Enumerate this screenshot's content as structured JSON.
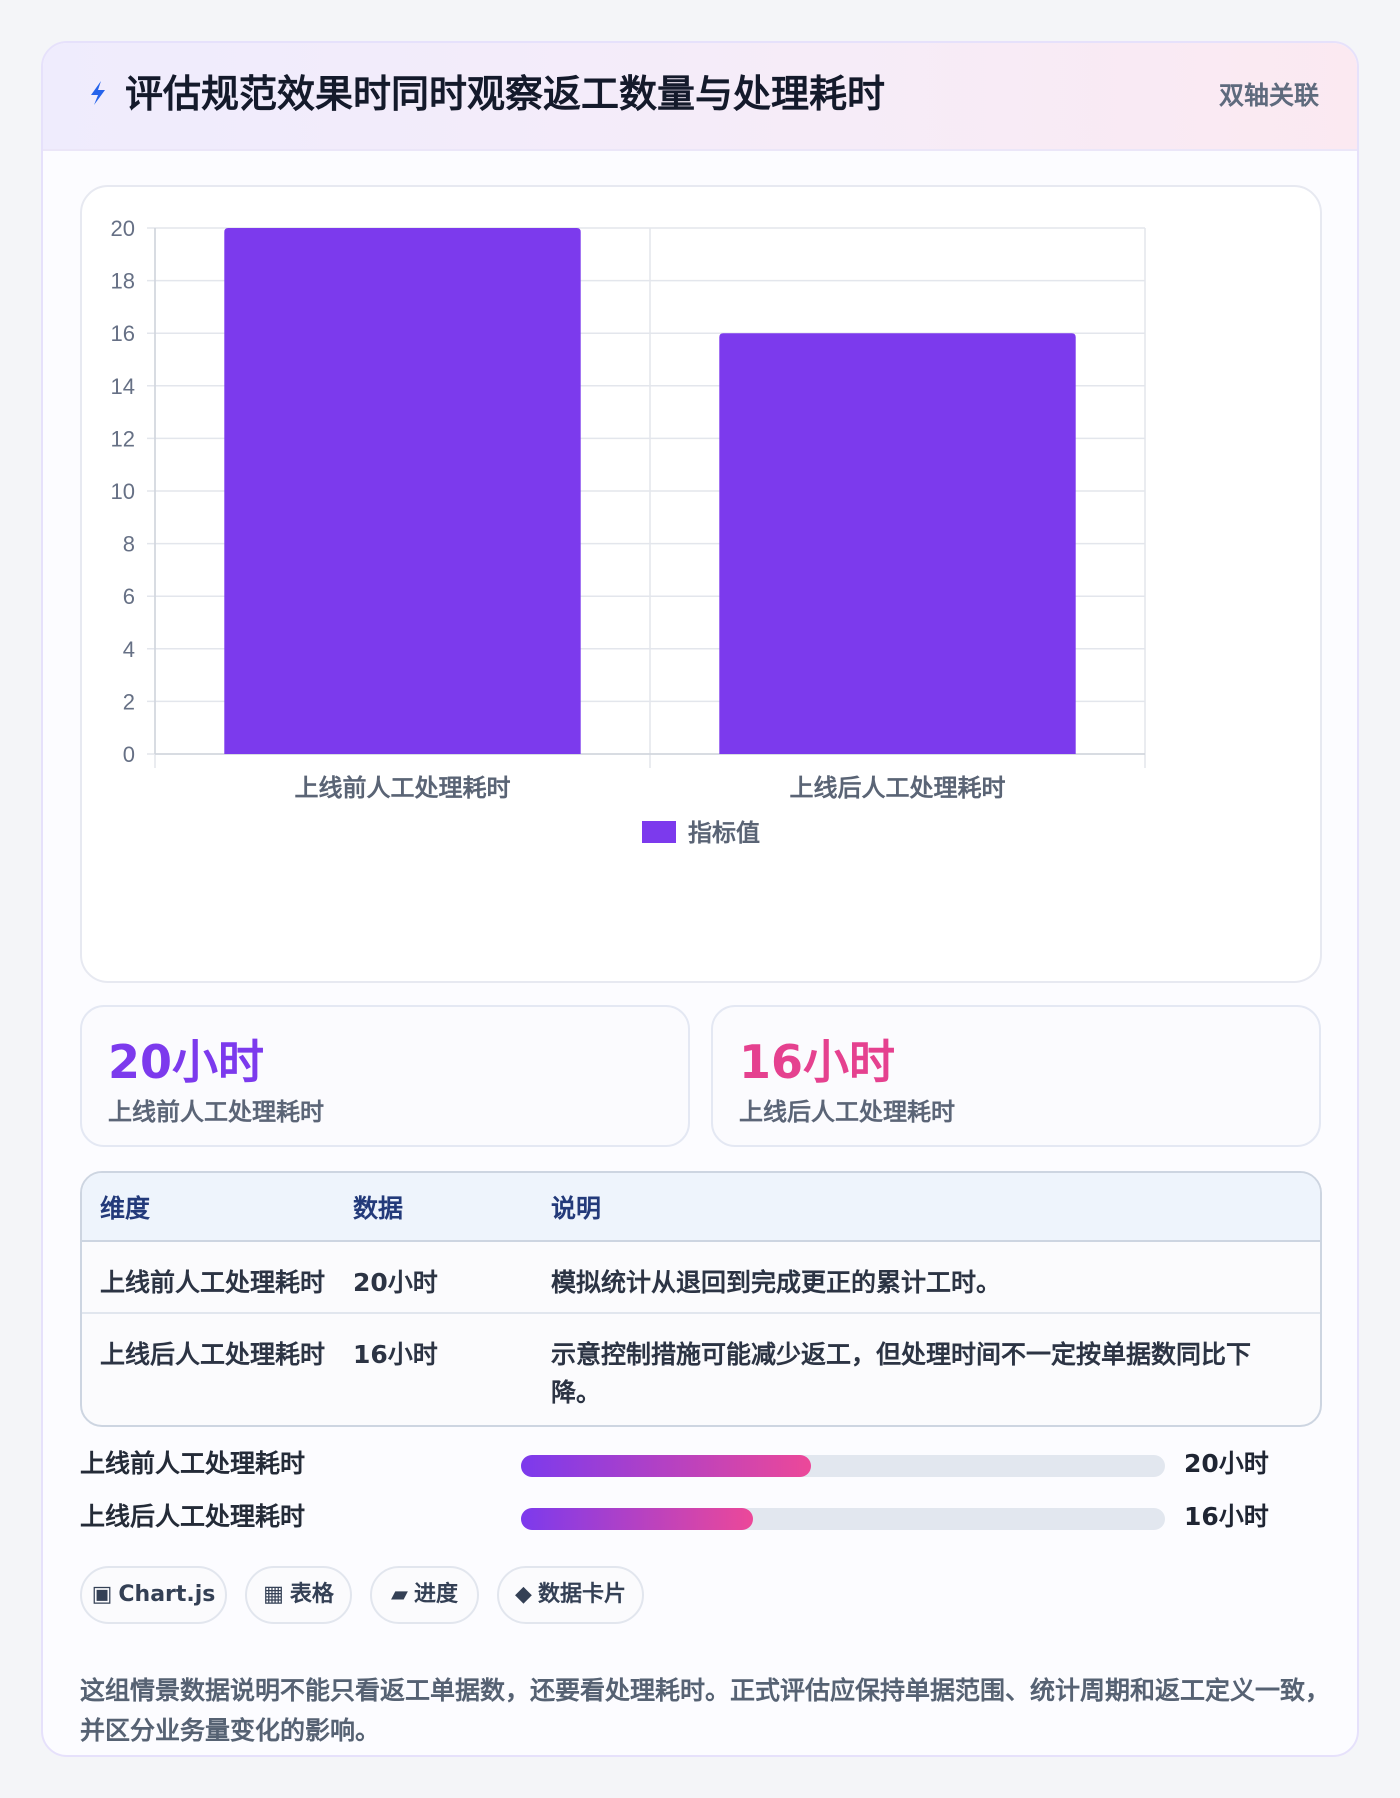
{
  "header": {
    "icon": "lightning-icon",
    "title": "评估规范效果时同时观察返工数量与处理耗时",
    "badge": "双轴关联"
  },
  "chart_data": {
    "type": "bar",
    "categories": [
      "上线前人工处理耗时",
      "上线后人工处理耗时"
    ],
    "series": [
      {
        "name": "指标值",
        "values": [
          20,
          16
        ],
        "color": "#7c3aed"
      }
    ],
    "yticks": [
      "0",
      "2",
      "4",
      "6",
      "8",
      "10",
      "12",
      "14",
      "16",
      "18",
      "20"
    ],
    "ylim": [
      0,
      20
    ],
    "grid": true,
    "legend": "bottom"
  },
  "stats": [
    {
      "value": "20小时",
      "label": "上线前人工处理耗时",
      "color": "#7c3aed"
    },
    {
      "value": "16小时",
      "label": "上线后人工处理耗时",
      "color": "#e5418f"
    }
  ],
  "table": {
    "headers": [
      "维度",
      "数据",
      "说明"
    ],
    "rows": [
      {
        "dimension": "上线前人工处理耗时",
        "data": "20小时",
        "note": "模拟统计从退回到完成更正的累计工时。"
      },
      {
        "dimension": "上线后人工处理耗时",
        "data": "16小时",
        "note": "示意控制措施可能减少返工，但处理时间不一定按单据数同比下降。"
      }
    ]
  },
  "progress": [
    {
      "label": "上线前人工处理耗时",
      "value": "20小时",
      "fraction": 0.45
    },
    {
      "label": "上线后人工处理耗时",
      "value": "16小时",
      "fraction": 0.36
    }
  ],
  "chips": [
    {
      "icon": "chart-icon",
      "glyph": "▣",
      "label": "Chart.js"
    },
    {
      "icon": "table-icon",
      "glyph": "▦",
      "label": "表格"
    },
    {
      "icon": "progress-icon",
      "glyph": "▰",
      "label": "进度"
    },
    {
      "icon": "card-icon",
      "glyph": "◆",
      "label": "数据卡片"
    }
  ],
  "note": "这组情景数据说明不能只看返工单据数，还要看处理耗时。正式评估应保持单据范围、统计周期和返工定义一致，并区分业务量变化的影响。"
}
